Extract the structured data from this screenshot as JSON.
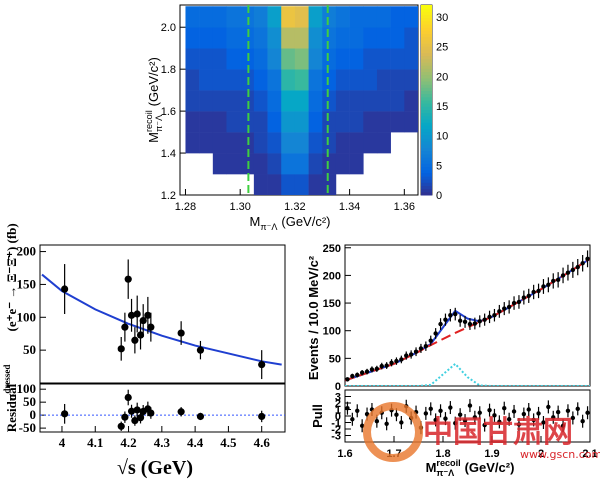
{
  "chart_data": [
    {
      "type": "heatmap",
      "xlabel": [
        {
          "text": "M"
        },
        {
          "text": "π⁻Λ",
          "pos": "sub"
        },
        {
          "text": "(GeV/c²)"
        }
      ],
      "ylabel": [
        {
          "text": "M"
        },
        {
          "text": "recoil",
          "pos": "sup"
        },
        {
          "text": "π⁻Λ",
          "pos": "sub"
        },
        {
          "text": "(GeV/c²)"
        }
      ],
      "xlim": [
        1.278,
        1.365
      ],
      "ylim": [
        1.2,
        2.106
      ],
      "xticks": [
        1.28,
        {
          "value": 1.3,
          "label": "1.30"
        },
        1.32,
        1.34,
        1.36
      ],
      "yticks": [
        1.2,
        1.4,
        1.6,
        1.8,
        {
          "value": 2,
          "label": "2.0"
        }
      ],
      "x_bins": [
        1.28,
        1.285,
        1.29,
        1.295,
        1.3,
        1.305,
        1.31,
        1.315,
        1.32,
        1.325,
        1.33,
        1.335,
        1.34,
        1.345,
        1.35,
        1.355,
        1.36,
        1.365
      ],
      "y_bins": [
        1.2,
        1.3,
        1.4,
        1.5,
        1.6,
        1.7,
        1.8,
        1.9,
        2.0,
        2.1
      ],
      "z": [
        [
          0,
          0,
          0,
          0,
          0,
          1,
          1,
          3,
          3,
          1,
          1,
          0,
          0,
          0,
          0,
          0,
          0
        ],
        [
          0,
          0,
          1,
          1,
          1,
          1,
          2,
          6,
          6,
          2,
          1,
          1,
          1,
          0,
          0,
          0,
          0
        ],
        [
          1,
          1,
          1,
          1,
          1,
          2,
          3,
          8,
          8,
          3,
          2,
          1,
          1,
          1,
          1,
          0,
          0
        ],
        [
          1,
          1,
          1,
          2,
          2,
          2,
          4,
          10,
          10,
          4,
          2,
          2,
          2,
          1,
          1,
          1,
          1
        ],
        [
          2,
          2,
          2,
          2,
          2,
          3,
          5,
          12,
          12,
          5,
          3,
          2,
          2,
          2,
          2,
          2,
          1
        ],
        [
          2,
          3,
          3,
          3,
          3,
          4,
          6,
          15,
          16,
          6,
          4,
          3,
          3,
          3,
          2,
          2,
          2
        ],
        [
          3,
          3,
          3,
          4,
          4,
          5,
          8,
          18,
          19,
          8,
          5,
          4,
          4,
          3,
          3,
          3,
          3
        ],
        [
          4,
          4,
          4,
          5,
          5,
          6,
          9,
          22,
          22,
          9,
          6,
          5,
          5,
          4,
          4,
          4,
          3
        ],
        [
          5,
          5,
          5,
          6,
          6,
          7,
          11,
          26,
          25,
          11,
          7,
          6,
          5,
          5,
          5,
          4,
          4
        ]
      ],
      "zlim": [
        0,
        32
      ],
      "zticks": [
        0,
        5,
        10,
        15,
        20,
        25,
        30
      ],
      "colormap": [
        "#352a87",
        "#0363e1",
        "#1485d4",
        "#06a7c6",
        "#38b99e",
        "#92bf73",
        "#d9ba56",
        "#fcce2e",
        "#f9fb0e"
      ],
      "vlines": [
        {
          "x": 1.303,
          "color": "#3fcf3f"
        },
        {
          "x": 1.332,
          "color": "#3fcf3f"
        }
      ]
    },
    {
      "type": "scatter",
      "ylabel": [
        {
          "text": "σ"
        },
        {
          "text": "dressed",
          "pos": "sup"
        },
        {
          "text": "(e⁺e⁻ → Ξ⁻Ξ̄⁺) (fb)"
        }
      ],
      "xlim": [
        3.934,
        4.67
      ],
      "ylim": [
        0,
        210
      ],
      "yticks": [
        50,
        100,
        150,
        200
      ],
      "x": [
        4.008,
        4.178,
        4.189,
        4.199,
        4.209,
        4.219,
        4.226,
        4.236,
        4.244,
        4.258,
        4.267,
        4.358,
        4.416,
        4.6
      ],
      "values": [
        143,
        52,
        85,
        158,
        103,
        65,
        105,
        73,
        95,
        103,
        85,
        76,
        50,
        28
      ],
      "errors": [
        38,
        18,
        22,
        30,
        25,
        20,
        28,
        22,
        25,
        28,
        22,
        18,
        14,
        22
      ],
      "color": "#000000",
      "curves": [
        {
          "color": "#1f3fd0",
          "dash": "solid",
          "x": [
            3.94,
            4.0,
            4.1,
            4.2,
            4.3,
            4.4,
            4.5,
            4.6,
            4.66
          ],
          "values": [
            165,
            140,
            112,
            90,
            72,
            57,
            45,
            33,
            28
          ]
        }
      ]
    },
    {
      "type": "scatter",
      "ylabel": [
        {
          "text": "Residual"
        }
      ],
      "xlabel": [
        {
          "text": "√s  (GeV)"
        }
      ],
      "xlim": [
        3.934,
        4.67
      ],
      "ylim": [
        -65,
        120
      ],
      "yticks": [
        -50,
        0,
        50,
        100
      ],
      "xticks": [
        4,
        4.1,
        4.2,
        4.3,
        4.4,
        4.5,
        4.6
      ],
      "x": [
        4.008,
        4.178,
        4.189,
        4.199,
        4.209,
        4.219,
        4.226,
        4.236,
        4.244,
        4.258,
        4.267,
        4.358,
        4.416,
        4.6
      ],
      "values": [
        5,
        -43,
        -8,
        68,
        15,
        -21,
        20,
        -10,
        14,
        24,
        8,
        13,
        -5,
        -5
      ],
      "errors": [
        38,
        18,
        22,
        30,
        25,
        20,
        28,
        22,
        25,
        28,
        22,
        18,
        14,
        22
      ],
      "color": "#000000",
      "reference_line": {
        "value": 0,
        "color": "#3355ff"
      }
    },
    {
      "type": "scatter",
      "ylabel": [
        {
          "text": "Events / 10.0 MeV/c²"
        }
      ],
      "xlim": [
        1.6,
        2.1
      ],
      "ylim": [
        0,
        255
      ],
      "yticks": [
        0,
        50,
        100,
        150,
        200,
        250
      ],
      "x": [
        1.605,
        1.615,
        1.625,
        1.635,
        1.645,
        1.655,
        1.665,
        1.675,
        1.685,
        1.695,
        1.705,
        1.715,
        1.725,
        1.735,
        1.745,
        1.755,
        1.765,
        1.775,
        1.785,
        1.795,
        1.805,
        1.815,
        1.825,
        1.835,
        1.845,
        1.855,
        1.865,
        1.875,
        1.885,
        1.895,
        1.905,
        1.915,
        1.925,
        1.935,
        1.945,
        1.955,
        1.965,
        1.975,
        1.985,
        1.995,
        2.005,
        2.015,
        2.025,
        2.035,
        2.045,
        2.055,
        2.065,
        2.075,
        2.085,
        2.095
      ],
      "values": [
        12,
        18,
        20,
        24,
        26,
        30,
        31,
        36,
        37,
        42,
        45,
        48,
        55,
        57,
        62,
        68,
        72,
        82,
        95,
        112,
        120,
        128,
        130,
        118,
        116,
        112,
        113,
        117,
        120,
        125,
        128,
        135,
        140,
        143,
        150,
        152,
        160,
        163,
        170,
        172,
        180,
        183,
        190,
        192,
        200,
        205,
        210,
        215,
        222,
        230
      ],
      "errors": [
        3.5,
        4.2,
        4.5,
        4.9,
        5.1,
        5.5,
        5.6,
        6,
        6.1,
        6.5,
        6.7,
        6.9,
        7.4,
        7.5,
        7.9,
        8.2,
        8.5,
        9.1,
        9.7,
        10.6,
        11,
        11.3,
        11.4,
        10.9,
        10.8,
        10.6,
        10.6,
        10.8,
        11,
        11.2,
        11.3,
        11.6,
        11.8,
        12,
        12.2,
        12.3,
        12.6,
        12.8,
        13,
        13.1,
        13.4,
        13.5,
        13.8,
        13.9,
        14.1,
        14.3,
        14.5,
        14.7,
        14.9,
        15.2
      ],
      "color": "#000000",
      "curves": [
        {
          "color": "#1f3fd0",
          "dash": "solid",
          "x": [
            1.6,
            1.65,
            1.7,
            1.75,
            1.775,
            1.8,
            1.825,
            1.85,
            1.875,
            1.9,
            1.95,
            2.0,
            2.05,
            2.1
          ],
          "values": [
            10,
            25,
            40,
            62,
            76,
            106,
            136,
            122,
            117,
            125,
            150,
            175,
            202,
            230
          ]
        },
        {
          "color": "#e02020",
          "dash": "dashed",
          "x": [
            1.6,
            1.65,
            1.7,
            1.75,
            1.775,
            1.8,
            1.825,
            1.85,
            1.875,
            1.9,
            1.95,
            2.0,
            2.05,
            2.1
          ],
          "values": [
            10,
            25,
            40,
            62,
            74,
            85,
            96,
            106,
            116,
            125,
            150,
            175,
            202,
            230
          ]
        },
        {
          "color": "#40d0e0",
          "dash": "dotted",
          "x": [
            1.6,
            1.65,
            1.7,
            1.75,
            1.775,
            1.8,
            1.825,
            1.85,
            1.875,
            1.9,
            1.95,
            2.0,
            2.05,
            2.1
          ],
          "values": [
            0,
            0,
            0,
            0,
            2,
            21,
            40,
            16,
            1,
            0,
            0,
            0,
            0,
            0
          ]
        }
      ]
    },
    {
      "type": "scatter",
      "ylabel": [
        {
          "text": "Pull"
        }
      ],
      "xlabel": [
        {
          "text": "M"
        },
        {
          "text": "recoil",
          "pos": "sup"
        },
        {
          "text": "π⁻Λ",
          "pos": "sub"
        },
        {
          "text": "(GeV/c²)"
        }
      ],
      "xlim": [
        1.6,
        2.1
      ],
      "ylim": [
        -4,
        4
      ],
      "yticks": [
        -3,
        -2,
        -1,
        0,
        1,
        2,
        3
      ],
      "xticks": [
        1.6,
        1.7,
        1.8,
        1.9,
        2,
        2.1
      ],
      "x": [
        1.605,
        1.615,
        1.625,
        1.635,
        1.645,
        1.655,
        1.665,
        1.675,
        1.685,
        1.695,
        1.705,
        1.715,
        1.725,
        1.735,
        1.745,
        1.755,
        1.765,
        1.775,
        1.785,
        1.795,
        1.805,
        1.815,
        1.825,
        1.835,
        1.845,
        1.855,
        1.865,
        1.875,
        1.885,
        1.895,
        1.905,
        1.915,
        1.925,
        1.935,
        1.945,
        1.955,
        1.965,
        1.975,
        1.985,
        1.995,
        2.005,
        2.015,
        2.025,
        2.035,
        2.045,
        2.055,
        2.065,
        2.075,
        2.085,
        2.095
      ],
      "values": [
        1.2,
        -0.5,
        0.8,
        -1.5,
        0.3,
        1.0,
        -0.8,
        0.5,
        -1.2,
        0.9,
        0.2,
        -1.0,
        1.5,
        -0.3,
        0.6,
        -1.8,
        0.4,
        1.1,
        -0.6,
        0.8,
        -0.4,
        1.3,
        -1.1,
        0.2,
        -0.7,
        1.6,
        -0.2,
        0.5,
        -1.4,
        0.9,
        0.1,
        -0.9,
        1.2,
        -0.5,
        0.7,
        -1.3,
        0.3,
        1.0,
        -0.6,
        0.4,
        -1.0,
        1.4,
        -0.2,
        0.6,
        -1.5,
        0.8,
        -0.3,
        1.1,
        -0.8,
        0.5
      ],
      "errors": [
        1,
        1,
        1,
        1,
        1,
        1,
        1,
        1,
        1,
        1,
        1,
        1,
        1,
        1,
        1,
        1,
        1,
        1,
        1,
        1,
        1,
        1,
        1,
        1,
        1,
        1,
        1,
        1,
        1,
        1,
        1,
        1,
        1,
        1,
        1,
        1,
        1,
        1,
        1,
        1,
        1,
        1,
        1,
        1,
        1,
        1,
        1,
        1,
        1,
        1
      ],
      "color": "#000000"
    }
  ],
  "watermark": {
    "name": "中国甘肃网",
    "url": "www.gscn.com.cn"
  }
}
